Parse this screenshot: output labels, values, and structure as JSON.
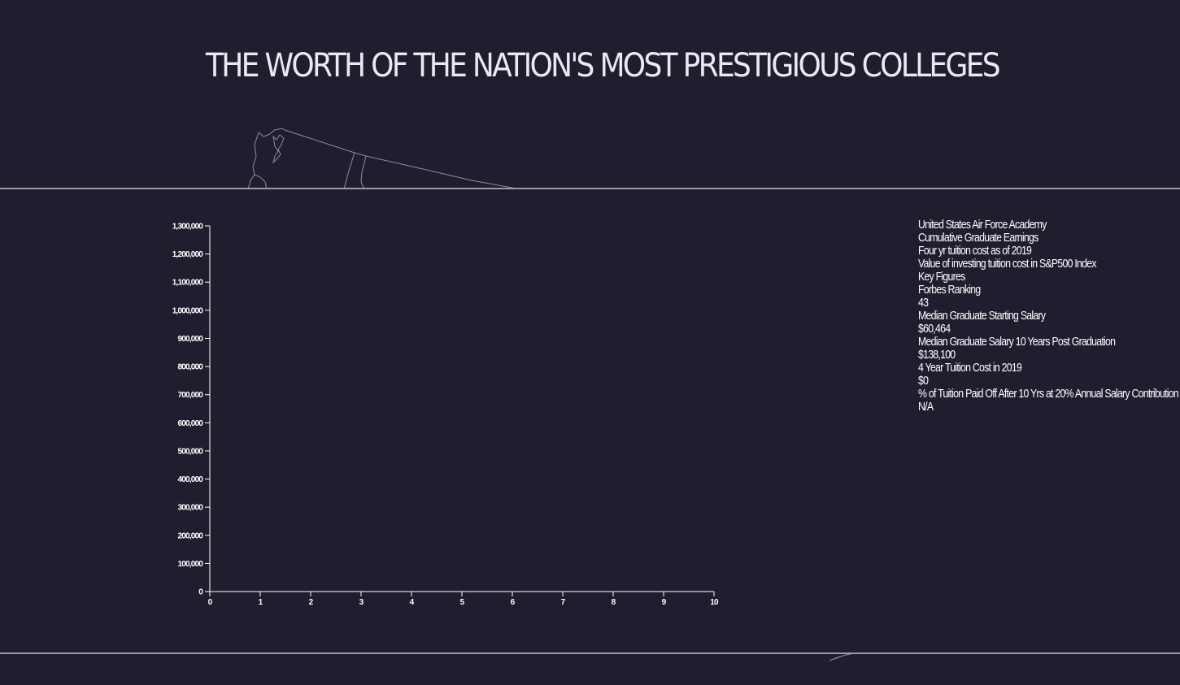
{
  "title": "THE WORTH OF THE NATION'S MOST PRESTIGIOUS COLLEGES",
  "colors": {
    "background": "#1f1e2f",
    "map_stroke": "#8e8d9c",
    "axis": "#ffffff",
    "divider": "#9a99a6",
    "title": "#ebe8f4"
  },
  "info": {
    "college": "United States Air Force Academy",
    "legend_earnings": "Cumulative Graduate Earnings",
    "legend_tuition": "Four yr tuition cost as of 2019",
    "legend_invest": "Value of investing tuition cost in S&P500 Index",
    "key_figures": "Key Figures",
    "forbes_label": "Forbes Ranking",
    "forbes_value": "43",
    "start_salary_label": "Median Graduate Starting Salary",
    "start_salary_value": "$60,464",
    "salary10_label": "Median Graduate Salary 10 Years Post Graduation",
    "salary10_value": "$138,100",
    "tuition_label": "4 Year Tuition Cost in 2019",
    "tuition_value": "$0",
    "paid_off_label": "% of Tuition Paid Off After 10 Yrs at 20% Annual Salary Contribution",
    "paid_off_value": "N/A"
  },
  "chart_data": {
    "type": "line",
    "title": "",
    "xlabel": "",
    "ylabel": "",
    "xlim": [
      0,
      10
    ],
    "ylim": [
      0,
      1300000
    ],
    "x_ticks": [
      "0",
      "1",
      "2",
      "3",
      "4",
      "5",
      "6",
      "7",
      "8",
      "9",
      "10"
    ],
    "y_ticks": [
      "0",
      "100,000",
      "200,000",
      "300,000",
      "400,000",
      "500,000",
      "600,000",
      "700,000",
      "800,000",
      "900,000",
      "1,000,000",
      "1,100,000",
      "1,200,000",
      "1,300,000"
    ],
    "series": [],
    "grid": false
  }
}
